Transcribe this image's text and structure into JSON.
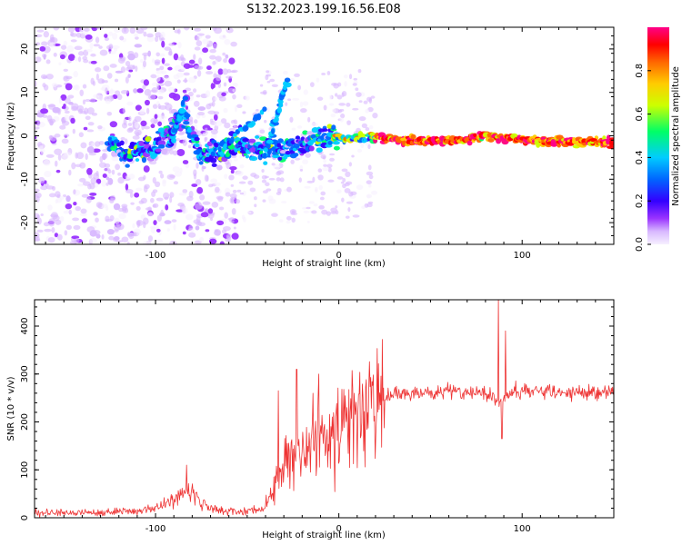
{
  "title": "S132.2023.199.16.56.E08",
  "colors": {
    "accent": "#ee3333",
    "cmap": [
      "#f6f0ff",
      "#d8b8ff",
      "#9933ff",
      "#3300ff",
      "#0066ff",
      "#00ccff",
      "#00ff66",
      "#ccff00",
      "#ffcc00",
      "#ff6600",
      "#ff0000",
      "#ff0088"
    ]
  },
  "chart_data": [
    {
      "type": "heatmap",
      "title": "S132.2023.199.16.56.E08",
      "xlabel": "Height of straight line (km)",
      "ylabel": "Frequency (Hz)",
      "xlim": [
        -166,
        150
      ],
      "ylim": [
        -25,
        25
      ],
      "xticks": [
        -100,
        0,
        100
      ],
      "yticks": [
        -20,
        -10,
        0,
        10,
        20
      ],
      "colorbar": {
        "label": "Normalized spectral amplitude",
        "range": [
          0.0,
          1.0
        ],
        "ticks": [
          0.0,
          0.2,
          0.4,
          0.6,
          0.8
        ]
      },
      "ridge": [
        [
          -120,
          -4.5
        ],
        [
          -110,
          -4
        ],
        [
          -100,
          -2
        ],
        [
          -92,
          1
        ],
        [
          -85,
          5
        ],
        [
          -75,
          -5
        ],
        [
          -65,
          -3
        ],
        [
          -55,
          -2
        ],
        [
          -45,
          -3
        ],
        [
          -35,
          -3
        ],
        [
          -25,
          -2
        ],
        [
          -15,
          -1.5
        ],
        [
          -5,
          0.5
        ],
        [
          0,
          -0.5
        ],
        [
          20,
          -0.5
        ],
        [
          40,
          -1
        ],
        [
          70,
          -1
        ],
        [
          80,
          0
        ],
        [
          100,
          -1
        ],
        [
          120,
          -1.5
        ],
        [
          150,
          -1.5
        ]
      ]
    },
    {
      "type": "line",
      "xlabel": "Height of straight line (km)",
      "ylabel": "SNR (10 * v/v)",
      "xlim": [
        -166,
        150
      ],
      "ylim": [
        0,
        455
      ],
      "xticks": [
        -100,
        0,
        100
      ],
      "yticks": [
        0,
        100,
        200,
        300,
        400
      ],
      "series": [
        {
          "name": "SNR",
          "profile": [
            [
              -166,
              10
            ],
            [
              -150,
              10
            ],
            [
              -130,
              12
            ],
            [
              -110,
              15
            ],
            [
              -100,
              20
            ],
            [
              -90,
              40
            ],
            [
              -80,
              55
            ],
            [
              -75,
              30
            ],
            [
              -65,
              15
            ],
            [
              -55,
              12
            ],
            [
              -45,
              15
            ],
            [
              -40,
              25
            ],
            [
              -35,
              70
            ],
            [
              -30,
              110
            ],
            [
              -25,
              120
            ],
            [
              -20,
              130
            ],
            [
              -10,
              160
            ],
            [
              0,
              190
            ],
            [
              10,
              210
            ],
            [
              20,
              235
            ],
            [
              30,
              260
            ],
            [
              50,
              262
            ],
            [
              70,
              262
            ],
            [
              80,
              262
            ],
            [
              88,
              240
            ],
            [
              95,
              265
            ],
            [
              120,
              262
            ],
            [
              150,
              260
            ]
          ],
          "spikes": [
            [
              -83,
              110
            ],
            [
              -33,
              265
            ],
            [
              -23,
              310
            ],
            [
              -14,
              260
            ],
            [
              -11,
              300
            ],
            [
              87,
              455
            ],
            [
              89,
              165
            ],
            [
              91,
              390
            ]
          ]
        }
      ]
    }
  ]
}
